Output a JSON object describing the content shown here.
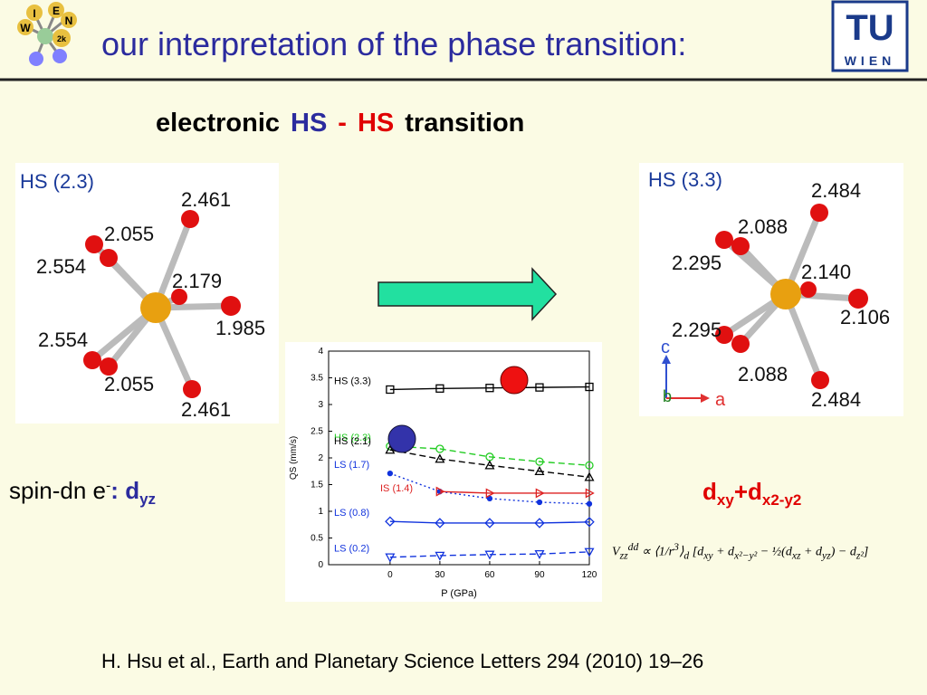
{
  "header": {
    "title": "our interpretation of the phase transition:",
    "logo_left": [
      "I",
      "E",
      "N",
      "W",
      "2k"
    ],
    "logo_right": [
      "TU",
      "WIEN"
    ]
  },
  "subtitle": {
    "parts": [
      "electronic",
      "HS",
      "-",
      "HS",
      "transition"
    ]
  },
  "left_structure": {
    "label": "HS (2.3)",
    "distances": [
      "2.461",
      "2.055",
      "2.554",
      "2.179",
      "1.985",
      "2.554",
      "2.055",
      "2.461"
    ]
  },
  "right_structure": {
    "label": "HS (3.3)",
    "distances": [
      "2.484",
      "2.088",
      "2.295",
      "2.140",
      "2.106",
      "2.295",
      "2.088",
      "2.484"
    ],
    "axes": [
      "c",
      "b",
      "a"
    ]
  },
  "left_note": {
    "text": "spin-dn e",
    "sup": "-",
    "colon": ":",
    "orbital": "d",
    "sub": "yz"
  },
  "right_note": {
    "parts": [
      "d",
      "xy",
      "+d",
      "x2-y2"
    ]
  },
  "formula": {
    "parts": [
      "V",
      "zz",
      "dd",
      "∝",
      "1",
      "r",
      "3",
      "d",
      "d",
      "xy",
      "+ d",
      "x²−y²",
      "− ½(d",
      "xz",
      "+ d",
      "yz",
      ") − d",
      "z²"
    ]
  },
  "chart": {
    "type": "line",
    "x_label": "P (GPa)",
    "y_label": "QS (mm/s)",
    "x": [
      0,
      30,
      60,
      90,
      120
    ],
    "xlim": [
      -37,
      120
    ],
    "xticks": [
      0,
      30,
      60,
      90,
      120
    ],
    "ylim": [
      0,
      4
    ],
    "yticks": [
      0,
      0.5,
      1,
      1.5,
      2,
      2.5,
      3,
      3.5,
      4
    ],
    "series": [
      {
        "name": "HS (3.3)",
        "color": "#000000",
        "marker": "square",
        "dash": "solid",
        "values": [
          3.28,
          3.3,
          3.31,
          3.32,
          3.33
        ]
      },
      {
        "name": "HS (2.3)",
        "color": "#22cc22",
        "marker": "circle",
        "dash": "dashed",
        "values": [
          2.22,
          2.17,
          2.02,
          1.93,
          1.86
        ]
      },
      {
        "name": "HS (2.1)",
        "color": "#000000",
        "marker": "triangle",
        "dash": "dashed",
        "values": [
          2.15,
          1.98,
          1.86,
          1.75,
          1.64
        ]
      },
      {
        "name": "LS (1.7)",
        "color": "#1133dd",
        "marker": "star",
        "dash": "dotted",
        "values": [
          1.71,
          1.37,
          1.24,
          1.17,
          1.14
        ]
      },
      {
        "name": "IS (1.4)",
        "color": "#dd2222",
        "marker": "right-triangle",
        "dash": "solid",
        "values": [
          null,
          1.37,
          1.34,
          1.34,
          1.34
        ]
      },
      {
        "name": "LS (0.8)",
        "color": "#1133dd",
        "marker": "diamond",
        "dash": "solid",
        "values": [
          0.81,
          0.78,
          0.78,
          0.78,
          0.8
        ]
      },
      {
        "name": "LS (0.2)",
        "color": "#1133dd",
        "marker": "down-triangle",
        "dash": "dashed",
        "values": [
          0.14,
          0.17,
          0.19,
          0.2,
          0.24
        ]
      }
    ]
  },
  "citation": "H. Hsu et al., Earth and Planetary Science Letters 294 (2010) 19–26"
}
